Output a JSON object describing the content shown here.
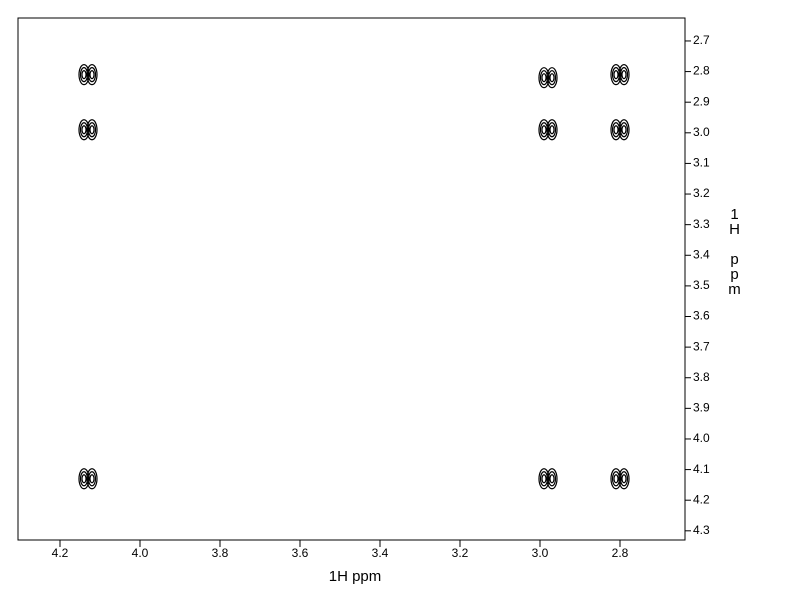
{
  "chart_data": {
    "type": "contour",
    "xlabel": "1H ppm",
    "ylabel": "1H ppm",
    "xlim": [
      4.305,
      2.6375
    ],
    "ylim": [
      2.625,
      4.33
    ],
    "xticks": [
      {
        "value": 4.2,
        "label": "4.2"
      },
      {
        "value": 4.0,
        "label": "4.0"
      },
      {
        "value": 3.8,
        "label": "3.8"
      },
      {
        "value": 3.6,
        "label": "3.6"
      },
      {
        "value": 3.4,
        "label": "3.4"
      },
      {
        "value": 3.2,
        "label": "3.2"
      },
      {
        "value": 3.0,
        "label": "3.0"
      },
      {
        "value": 2.8,
        "label": "2.8"
      }
    ],
    "yticks": [
      2.7,
      2.8,
      2.9,
      {
        "value": 3.0,
        "label": "3.0"
      },
      3.1,
      3.2,
      3.3,
      3.4,
      3.5,
      3.6,
      3.7,
      3.8,
      3.9,
      {
        "value": 4.0,
        "label": "4.0"
      },
      4.1,
      4.2,
      4.3
    ],
    "color": "#000000",
    "series": [
      {
        "x": [
          4.13,
          4.13,
          4.13,
          2.98,
          2.98,
          2.98,
          2.8,
          2.8,
          2.8
        ],
        "y": [
          2.81,
          2.99,
          4.13,
          2.82,
          2.99,
          4.13,
          2.81,
          2.99,
          4.13
        ]
      }
    ]
  }
}
